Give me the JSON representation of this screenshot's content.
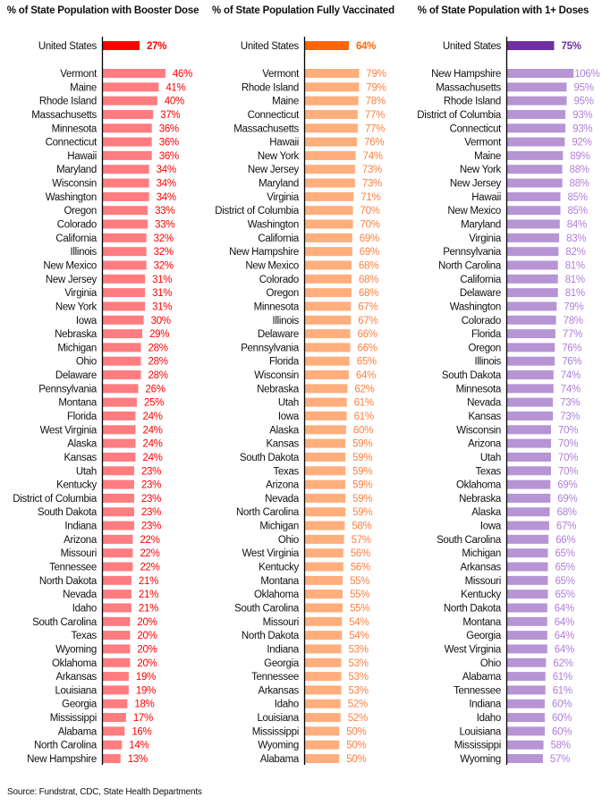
{
  "source": "Source: Fundstrat, CDC, State Health Departments",
  "chart_data": [
    {
      "type": "bar",
      "orientation": "horizontal",
      "title": "% of State Population with Booster Dose",
      "us": {
        "label": "United States",
        "value": 27
      },
      "colors": {
        "us_bar": "#ff0000",
        "bar": "#ff7c80",
        "us_label": "#ff0000",
        "label": "#ff0000"
      },
      "xlim": [
        0,
        50
      ],
      "categories": [
        "Vermont",
        "Maine",
        "Rhode Island",
        "Massachusetts",
        "Minnesota",
        "Connecticut",
        "Hawaii",
        "Maryland",
        "Wisconsin",
        "Washington",
        "Oregon",
        "Colorado",
        "California",
        "Illinois",
        "New Mexico",
        "New Jersey",
        "Virginia",
        "New York",
        "Iowa",
        "Nebraska",
        "Michigan",
        "Ohio",
        "Delaware",
        "Pennsylvania",
        "Montana",
        "Florida",
        "West Virginia",
        "Alaska",
        "Kansas",
        "Utah",
        "Kentucky",
        "District of Columbia",
        "South Dakota",
        "Indiana",
        "Arizona",
        "Missouri",
        "Tennessee",
        "North Dakota",
        "Nevada",
        "Idaho",
        "South Carolina",
        "Texas",
        "Wyoming",
        "Oklahoma",
        "Arkansas",
        "Louisiana",
        "Georgia",
        "Mississippi",
        "Alabama",
        "North Carolina",
        "New Hampshire"
      ],
      "values": [
        46,
        41,
        40,
        37,
        36,
        36,
        36,
        34,
        34,
        34,
        33,
        33,
        32,
        32,
        32,
        31,
        31,
        31,
        30,
        29,
        28,
        28,
        28,
        26,
        25,
        24,
        24,
        24,
        24,
        23,
        23,
        23,
        23,
        23,
        22,
        22,
        22,
        21,
        21,
        21,
        20,
        20,
        20,
        20,
        19,
        19,
        18,
        17,
        16,
        14,
        13
      ],
      "value_suffix": "%"
    },
    {
      "type": "bar",
      "orientation": "horizontal",
      "title": "% of State Population Fully Vaccinated",
      "us": {
        "label": "United States",
        "value": 64
      },
      "colors": {
        "us_bar": "#ff6600",
        "bar": "#ffae7c",
        "us_label": "#ff6600",
        "label": "#ff7f3f"
      },
      "xlim": [
        0,
        100
      ],
      "categories": [
        "Vermont",
        "Rhode Island",
        "Maine",
        "Connecticut",
        "Massachusetts",
        "Hawaii",
        "New York",
        "New Jersey",
        "Maryland",
        "Virginia",
        "District of Columbia",
        "Washington",
        "California",
        "New Hampshire",
        "New Mexico",
        "Colorado",
        "Oregon",
        "Minnesota",
        "Illinois",
        "Delaware",
        "Pennsylvania",
        "Florida",
        "Wisconsin",
        "Nebraska",
        "Utah",
        "Iowa",
        "Alaska",
        "Kansas",
        "South Dakota",
        "Texas",
        "Arizona",
        "Nevada",
        "North Carolina",
        "Michigan",
        "Ohio",
        "West Virginia",
        "Kentucky",
        "Montana",
        "Oklahoma",
        "South Carolina",
        "Missouri",
        "North Dakota",
        "Indiana",
        "Georgia",
        "Tennessee",
        "Arkansas",
        "Idaho",
        "Louisiana",
        "Mississippi",
        "Wyoming",
        "Alabama"
      ],
      "values": [
        79,
        79,
        78,
        77,
        77,
        76,
        74,
        73,
        73,
        71,
        70,
        70,
        69,
        69,
        68,
        68,
        68,
        67,
        67,
        66,
        66,
        65,
        64,
        62,
        61,
        61,
        60,
        59,
        59,
        59,
        59,
        59,
        59,
        58,
        57,
        56,
        56,
        55,
        55,
        55,
        54,
        54,
        53,
        53,
        53,
        53,
        52,
        52,
        50,
        50,
        50
      ],
      "value_suffix": "%"
    },
    {
      "type": "bar",
      "orientation": "horizontal",
      "title": "% of State Population with 1+ Doses",
      "us": {
        "label": "United States",
        "value": 75
      },
      "colors": {
        "us_bar": "#7030a0",
        "bar": "#b794d4",
        "us_label": "#7030a0",
        "label": "#b07fd8"
      },
      "xlim": [
        0,
        150
      ],
      "categories": [
        "New Hampshire",
        "Massachusetts",
        "Rhode Island",
        "District of Columbia",
        "Connecticut",
        "Vermont",
        "Maine",
        "New York",
        "New Jersey",
        "Hawaii",
        "New Mexico",
        "Maryland",
        "Virginia",
        "Pennsylvania",
        "North Carolina",
        "California",
        "Delaware",
        "Washington",
        "Colorado",
        "Florida",
        "Oregon",
        "Illinois",
        "South Dakota",
        "Minnesota",
        "Nevada",
        "Kansas",
        "Wisconsin",
        "Arizona",
        "Utah",
        "Texas",
        "Oklahoma",
        "Nebraska",
        "Alaska",
        "Iowa",
        "South Carolina",
        "Michigan",
        "Arkansas",
        "Missouri",
        "Kentucky",
        "North Dakota",
        "Montana",
        "Georgia",
        "West Virginia",
        "Ohio",
        "Alabama",
        "Tennessee",
        "Indiana",
        "Idaho",
        "Louisiana",
        "Mississippi",
        "Wyoming"
      ],
      "values": [
        106,
        95,
        95,
        93,
        93,
        92,
        89,
        88,
        88,
        85,
        85,
        84,
        83,
        82,
        81,
        81,
        81,
        79,
        78,
        77,
        76,
        76,
        74,
        74,
        73,
        73,
        70,
        70,
        70,
        70,
        69,
        69,
        68,
        67,
        66,
        65,
        65,
        65,
        65,
        64,
        64,
        64,
        64,
        62,
        61,
        61,
        60,
        60,
        60,
        58,
        57
      ],
      "value_suffix": "%"
    }
  ]
}
